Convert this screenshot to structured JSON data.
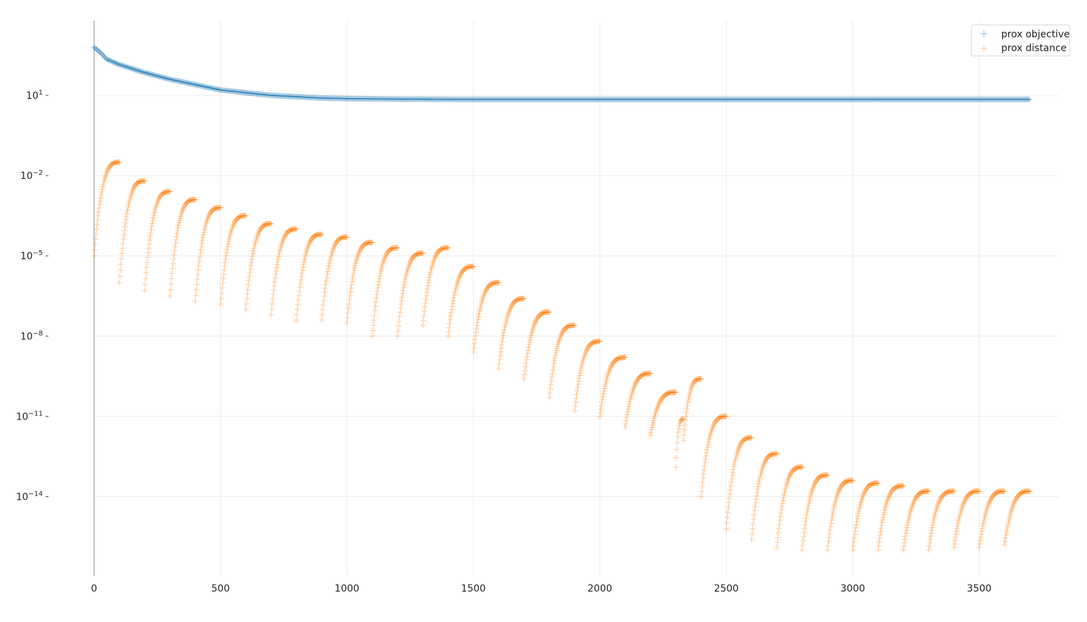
{
  "chart_data": {
    "type": "scatter",
    "title": "",
    "xlabel": "",
    "ylabel": "",
    "y_scale": "log",
    "grid": true,
    "legend_position": "top-right",
    "xlim": [
      0,
      3700
    ],
    "ylim_exponent": [
      -17,
      3.8
    ],
    "x_ticks": [
      "0",
      "500",
      "1000",
      "1500",
      "2000",
      "2500",
      "3000",
      "3500"
    ],
    "x_tick_values": [
      0,
      500,
      1000,
      1500,
      2000,
      2500,
      3000,
      3500
    ],
    "y_ticks": [
      {
        "exp": 1,
        "base": "10",
        "sup": "1"
      },
      {
        "exp": -2,
        "base": "10",
        "sup": "−2"
      },
      {
        "exp": -5,
        "base": "10",
        "sup": "−5"
      },
      {
        "exp": -8,
        "base": "10",
        "sup": "−8"
      },
      {
        "exp": -11,
        "base": "10",
        "sup": "−11"
      },
      {
        "exp": -14,
        "base": "10",
        "sup": "−14"
      }
    ],
    "series": [
      {
        "name": "prox objective",
        "color": "#1f77b4",
        "marker": "+",
        "description_points_log10": [
          [
            0,
            2.8
          ],
          [
            25,
            2.6
          ],
          [
            50,
            2.35
          ],
          [
            100,
            2.15
          ],
          [
            200,
            1.85
          ],
          [
            300,
            1.6
          ],
          [
            400,
            1.4
          ],
          [
            500,
            1.2
          ],
          [
            600,
            1.1
          ],
          [
            700,
            1.0
          ],
          [
            800,
            0.95
          ],
          [
            900,
            0.9
          ],
          [
            1000,
            0.88
          ],
          [
            1200,
            0.86
          ],
          [
            1500,
            0.85
          ],
          [
            3700,
            0.85
          ]
        ]
      },
      {
        "name": "prox distance",
        "color": "#ff7f0e",
        "marker": "+",
        "restart_every": 100,
        "segments": [
          {
            "start": 0,
            "end": 100,
            "low": -5.0,
            "high": -1.5
          },
          {
            "start": 100,
            "end": 200,
            "low": -6.0,
            "high": -2.2
          },
          {
            "start": 200,
            "end": 300,
            "low": -6.3,
            "high": -2.6
          },
          {
            "start": 300,
            "end": 400,
            "low": -6.5,
            "high": -2.9
          },
          {
            "start": 400,
            "end": 500,
            "low": -6.7,
            "high": -3.2
          },
          {
            "start": 500,
            "end": 600,
            "low": -6.8,
            "high": -3.5
          },
          {
            "start": 600,
            "end": 700,
            "low": -7.0,
            "high": -3.8
          },
          {
            "start": 700,
            "end": 800,
            "low": -7.2,
            "high": -4.0
          },
          {
            "start": 800,
            "end": 900,
            "low": -7.4,
            "high": -4.2
          },
          {
            "start": 900,
            "end": 1000,
            "low": -7.4,
            "high": -4.3
          },
          {
            "start": 1000,
            "end": 1100,
            "low": -7.5,
            "high": -4.5
          },
          {
            "start": 1100,
            "end": 1200,
            "low": -8.0,
            "high": -4.7
          },
          {
            "start": 1200,
            "end": 1300,
            "low": -8.0,
            "high": -4.9
          },
          {
            "start": 1300,
            "end": 1400,
            "low": -7.6,
            "high": -4.7
          },
          {
            "start": 1400,
            "end": 1500,
            "low": -8.0,
            "high": -5.4
          },
          {
            "start": 1500,
            "end": 1600,
            "low": -8.6,
            "high": -6.0
          },
          {
            "start": 1600,
            "end": 1700,
            "low": -9.2,
            "high": -6.6
          },
          {
            "start": 1700,
            "end": 1800,
            "low": -9.6,
            "high": -7.1
          },
          {
            "start": 1800,
            "end": 1900,
            "low": -10.3,
            "high": -7.6
          },
          {
            "start": 1900,
            "end": 2000,
            "low": -10.8,
            "high": -8.2
          },
          {
            "start": 2000,
            "end": 2100,
            "low": -11.0,
            "high": -8.8
          },
          {
            "start": 2100,
            "end": 2200,
            "low": -11.4,
            "high": -9.4
          },
          {
            "start": 2200,
            "end": 2300,
            "low": -11.7,
            "high": -10.1
          },
          {
            "start": 2300,
            "end": 2330,
            "low": -12.9,
            "high": -11.1
          },
          {
            "start": 2330,
            "end": 2400,
            "low": -11.9,
            "high": -9.6
          },
          {
            "start": 2400,
            "end": 2500,
            "low": -14.0,
            "high": -11.0
          },
          {
            "start": 2500,
            "end": 2600,
            "low": -15.2,
            "high": -11.8
          },
          {
            "start": 2600,
            "end": 2700,
            "low": -15.6,
            "high": -12.4
          },
          {
            "start": 2700,
            "end": 2800,
            "low": -15.9,
            "high": -12.9
          },
          {
            "start": 2800,
            "end": 2900,
            "low": -16.0,
            "high": -13.2
          },
          {
            "start": 2900,
            "end": 3000,
            "low": -16.0,
            "high": -13.4
          },
          {
            "start": 3000,
            "end": 3100,
            "low": -16.0,
            "high": -13.5
          },
          {
            "start": 3100,
            "end": 3200,
            "low": -16.0,
            "high": -13.6
          },
          {
            "start": 3200,
            "end": 3300,
            "low": -16.0,
            "high": -13.8
          },
          {
            "start": 3300,
            "end": 3400,
            "low": -16.0,
            "high": -13.8
          },
          {
            "start": 3400,
            "end": 3500,
            "low": -15.9,
            "high": -13.8
          },
          {
            "start": 3500,
            "end": 3600,
            "low": -15.9,
            "high": -13.8
          },
          {
            "start": 3600,
            "end": 3700,
            "low": -15.8,
            "high": -13.8
          }
        ]
      }
    ]
  }
}
